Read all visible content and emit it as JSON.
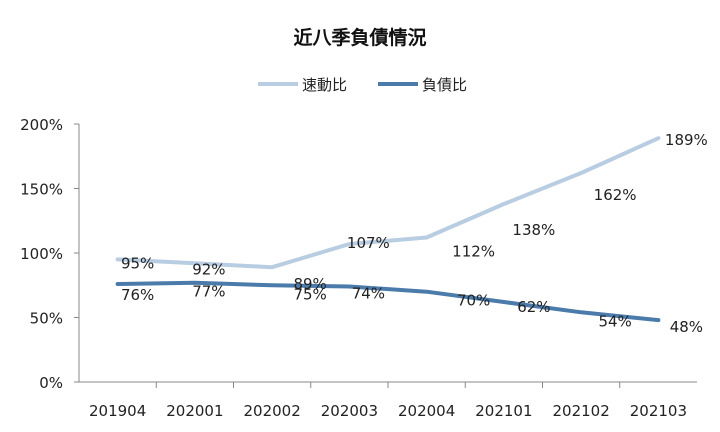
{
  "chart_data": {
    "type": "line",
    "title": "近八季負債情況",
    "categories": [
      "201904",
      "202001",
      "202002",
      "202003",
      "202004",
      "202101",
      "202102",
      "202103"
    ],
    "series": [
      {
        "name": "速動比",
        "values": [
          95,
          92,
          89,
          107,
          112,
          138,
          162,
          189
        ],
        "color": "#b9cde2"
      },
      {
        "name": "負債比",
        "values": [
          76,
          77,
          75,
          74,
          70,
          62,
          54,
          48
        ],
        "color": "#4a7bab"
      }
    ],
    "data_labels": {
      "quick": [
        "95%",
        "92%",
        "89%",
        "107%",
        "112%",
        "138%",
        "162%",
        "189%"
      ],
      "debt": [
        "76%",
        "77%",
        "75%",
        "74%",
        "70%",
        "62%",
        "54%",
        "48%"
      ]
    },
    "ylim": [
      0,
      200
    ],
    "yticks": [
      "0%",
      "50%",
      "100%",
      "150%",
      "200%"
    ],
    "ytick_values": [
      0,
      50,
      100,
      150,
      200
    ],
    "grid": false,
    "legend_position": "top-center"
  }
}
